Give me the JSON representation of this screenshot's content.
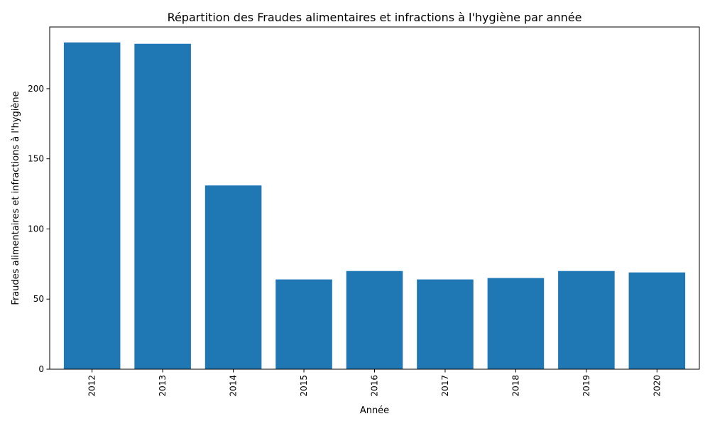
{
  "chart_data": {
    "type": "bar",
    "title": "Répartition des Fraudes alimentaires et infractions à l'hygiène par année",
    "xlabel": "Année",
    "ylabel": "Fraudes alimentaires et infractions à l'hygiène",
    "categories": [
      "2012",
      "2013",
      "2014",
      "2015",
      "2016",
      "2017",
      "2018",
      "2019",
      "2020"
    ],
    "values": [
      233,
      232,
      131,
      64,
      70,
      64,
      65,
      70,
      69
    ],
    "ylim": [
      0,
      244
    ],
    "yticks": [
      0,
      50,
      100,
      150,
      200
    ],
    "grid": false,
    "legend": "none",
    "bar_color": "#1f77b4"
  }
}
